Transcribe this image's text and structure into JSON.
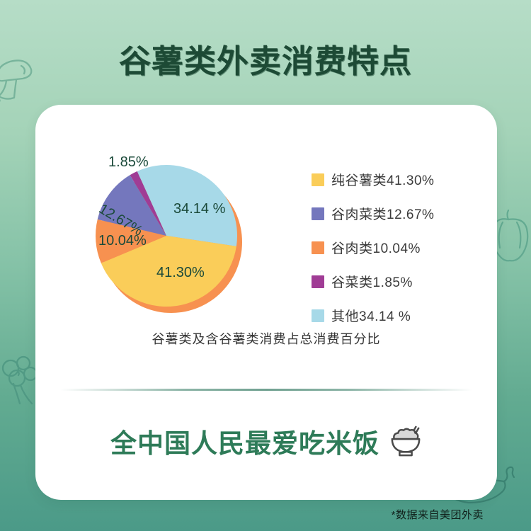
{
  "header": {
    "title": "谷薯类外卖消费特点"
  },
  "chart_data": {
    "type": "pie",
    "title": "谷薯类及含谷薯类消费占总消费百分比",
    "legend_position": "right",
    "start_angle_deg": 121,
    "shadow_color": "#f79150",
    "draw_order": [
      3,
      4,
      0,
      2,
      1
    ],
    "slices": [
      {
        "label": "纯谷薯类",
        "value": 41.3,
        "display": "41.30%",
        "legend_text": "纯谷薯类41.30%",
        "color": "#facd59"
      },
      {
        "label": "谷肉菜类",
        "value": 12.67,
        "display": "12.67%",
        "legend_text": "谷肉菜类12.67%",
        "color": "#7477bd"
      },
      {
        "label": "谷肉类",
        "value": 10.04,
        "display": "10.04%",
        "legend_text": "谷肉类10.04%",
        "color": "#f79150"
      },
      {
        "label": "谷菜类",
        "value": 1.85,
        "display": "1.85%",
        "legend_text": "谷菜类1.85%",
        "color": "#a03c95"
      },
      {
        "label": "其他",
        "value": 34.14,
        "display": "34.14 %",
        "legend_text": "其他34.14 %",
        "color": "#a7d9e8"
      }
    ]
  },
  "conclusion": {
    "text": "全中国人民最爱吃米饭"
  },
  "footnote": {
    "text": "*数据来自美团外卖"
  },
  "colors": {
    "title_green": "#1d4a35",
    "conclusion_green": "#2e7b58",
    "bg_top": "#b6ddc7",
    "bg_bottom": "#4b9a88",
    "card": "#ffffff"
  }
}
